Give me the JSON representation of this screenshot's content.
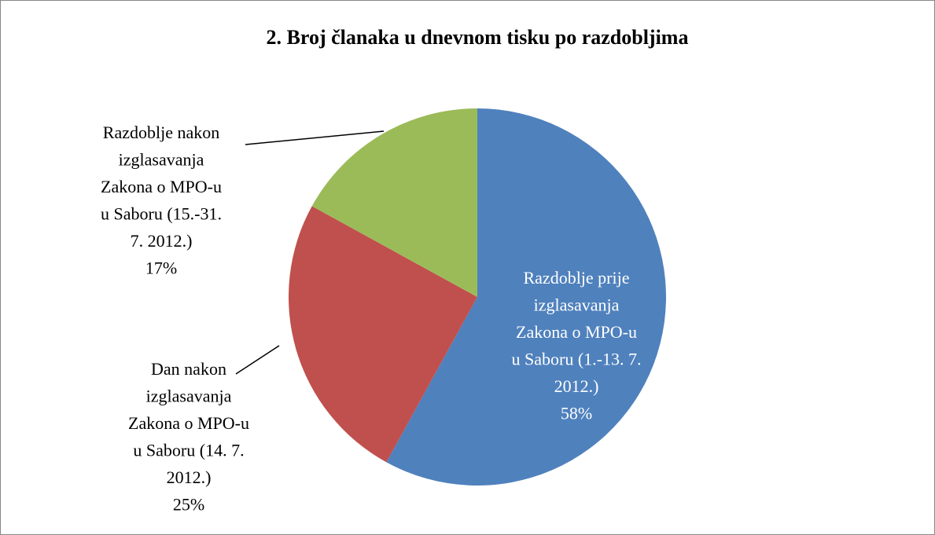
{
  "chart_data": {
    "type": "pie",
    "title": "2. Broj članaka u dnevnom tisku po razdobljima",
    "categories": [
      "Razdoblje prije izglasavanja Zakona o MPO-u u Saboru (1.-13. 7. 2012.)",
      "Dan nakon izglasavanja Zakona o MPO-u u Saboru (14. 7. 2012.)",
      "Razdoblje nakon izglasavanja Zakona o MPO-u u Saboru (15.-31. 7. 2012.)"
    ],
    "values": [
      58,
      25,
      17
    ],
    "value_labels": [
      "58%",
      "25%",
      "17%"
    ],
    "colors": [
      "#4f81bd",
      "#c0504d",
      "#9bbb59"
    ]
  }
}
